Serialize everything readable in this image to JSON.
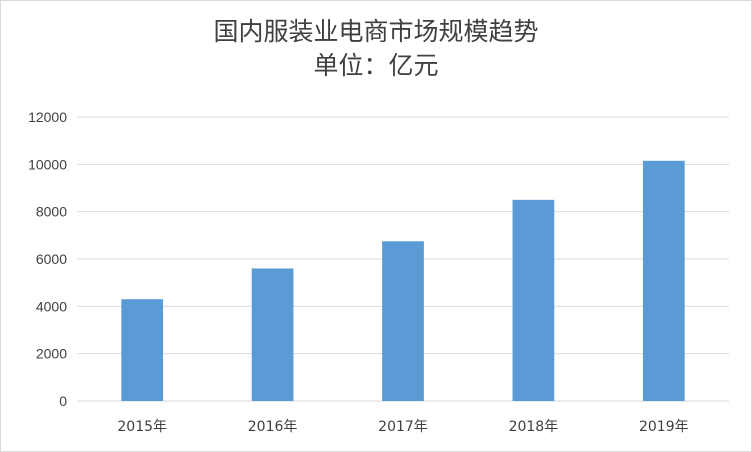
{
  "chart_data": {
    "type": "bar",
    "title": "国内服装业电商市场规模趋势",
    "subtitle": "单位：亿元",
    "categories": [
      "2015年",
      "2016年",
      "2017年",
      "2018年",
      "2019年"
    ],
    "series": [
      {
        "values": [
          4300,
          5600,
          6750,
          8500,
          10150
        ]
      }
    ],
    "ylim": [
      0,
      12000
    ],
    "yticks": [
      0,
      2000,
      4000,
      6000,
      8000,
      10000,
      12000
    ],
    "grid": true,
    "legend": "none",
    "bar_color": "#5b9bd5",
    "grid_color": "#d9d9d9"
  }
}
